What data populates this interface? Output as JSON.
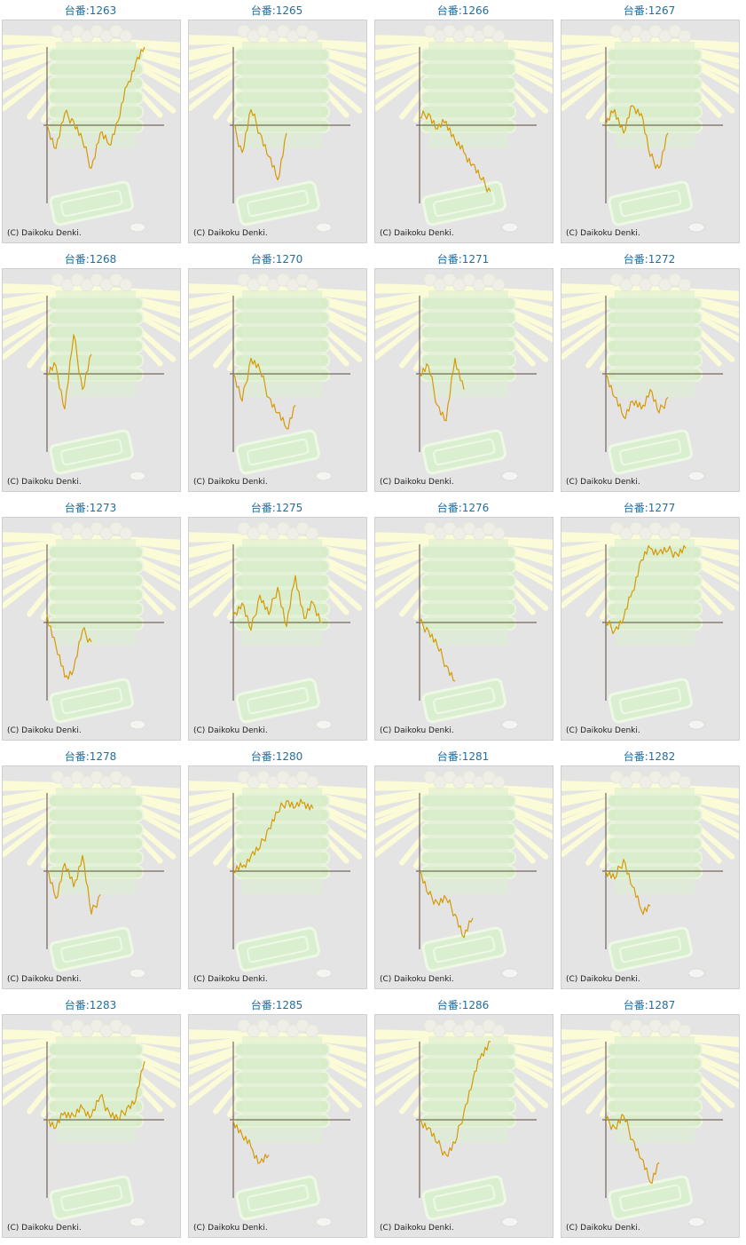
{
  "colors": {
    "title": "#1f6ea0",
    "line": "#d59a08",
    "axis": "#5a4a3a",
    "panel_bg": "#e4e4e4",
    "panel_border": "#cfcfcf",
    "rays": "#fbfbd8",
    "machine": "#d8ecc8"
  },
  "background_icon": "pachinko-slot-machine-illustration",
  "credit_text": "(C) Daikoku Denki.",
  "chart_data": [
    {
      "type": "line",
      "title": "台番:1263",
      "x": [
        0,
        10,
        20,
        30,
        40,
        50,
        60,
        70,
        80,
        90,
        100,
        110
      ],
      "series": [
        {
          "values": [
            0.0,
            -0.3,
            0.15,
            0.05,
            -0.2,
            -0.55,
            -0.1,
            -0.25,
            0.05,
            0.5,
            0.8,
            1.0
          ]
        }
      ]
    },
    {
      "type": "line",
      "title": "台番:1265",
      "x": [
        0,
        10,
        20,
        30,
        40,
        50,
        60
      ],
      "series": [
        {
          "values": [
            0.0,
            -0.35,
            0.2,
            -0.1,
            -0.4,
            -0.7,
            -0.1
          ]
        }
      ]
    },
    {
      "type": "line",
      "title": "台番:1266",
      "x": [
        0,
        10,
        20,
        30,
        40,
        50,
        60,
        70,
        80
      ],
      "series": [
        {
          "values": [
            0.1,
            0.15,
            -0.05,
            0.05,
            -0.2,
            -0.35,
            -0.5,
            -0.7,
            -0.85
          ]
        }
      ]
    },
    {
      "type": "line",
      "title": "台番:1267",
      "x": [
        0,
        10,
        20,
        30,
        40,
        50,
        60,
        70
      ],
      "series": [
        {
          "values": [
            0.0,
            0.2,
            -0.1,
            0.25,
            0.15,
            -0.4,
            -0.55,
            -0.1
          ]
        }
      ]
    },
    {
      "type": "line",
      "title": "台番:1268",
      "x": [
        0,
        10,
        20,
        30,
        40,
        50
      ],
      "series": [
        {
          "values": [
            0.0,
            0.1,
            -0.45,
            0.5,
            -0.2,
            0.25
          ]
        }
      ]
    },
    {
      "type": "line",
      "title": "台番:1270",
      "x": [
        0,
        10,
        20,
        30,
        40,
        50,
        60,
        70
      ],
      "series": [
        {
          "values": [
            0.0,
            -0.35,
            0.2,
            0.05,
            -0.3,
            -0.5,
            -0.7,
            -0.4
          ]
        }
      ]
    },
    {
      "type": "line",
      "title": "台番:1271",
      "x": [
        0,
        10,
        20,
        30,
        40,
        50
      ],
      "series": [
        {
          "values": [
            0.0,
            0.1,
            -0.4,
            -0.6,
            0.2,
            -0.2
          ]
        }
      ]
    },
    {
      "type": "line",
      "title": "台番:1272",
      "x": [
        0,
        10,
        20,
        30,
        40,
        50,
        60,
        70
      ],
      "series": [
        {
          "values": [
            0.0,
            -0.3,
            -0.55,
            -0.35,
            -0.45,
            -0.2,
            -0.5,
            -0.3
          ]
        }
      ]
    },
    {
      "type": "line",
      "title": "台番:1273",
      "x": [
        0,
        10,
        20,
        30,
        40,
        50
      ],
      "series": [
        {
          "values": [
            0.1,
            -0.3,
            -0.7,
            -0.6,
            -0.1,
            -0.25
          ]
        }
      ]
    },
    {
      "type": "line",
      "title": "台番:1275",
      "x": [
        0,
        10,
        20,
        30,
        40,
        50,
        60,
        70,
        80,
        90,
        100
      ],
      "series": [
        {
          "values": [
            0.1,
            0.25,
            -0.1,
            0.35,
            0.1,
            0.45,
            -0.05,
            0.6,
            0.05,
            0.25,
            0.0
          ]
        }
      ]
    },
    {
      "type": "line",
      "title": "台番:1276",
      "x": [
        0,
        10,
        20,
        30,
        40
      ],
      "series": [
        {
          "values": [
            0.0,
            -0.1,
            -0.3,
            -0.55,
            -0.75
          ]
        }
      ]
    },
    {
      "type": "line",
      "title": "台番:1277",
      "x": [
        0,
        10,
        20,
        30,
        40,
        50,
        60,
        70,
        80,
        90
      ],
      "series": [
        {
          "values": [
            0.0,
            -0.1,
            0.05,
            0.4,
            0.8,
            0.95,
            0.9,
            0.92,
            0.88,
            0.95
          ]
        }
      ]
    },
    {
      "type": "line",
      "title": "台番:1278",
      "x": [
        0,
        10,
        20,
        30,
        40,
        50,
        60
      ],
      "series": [
        {
          "values": [
            0.0,
            -0.35,
            0.1,
            -0.2,
            0.2,
            -0.55,
            -0.3
          ]
        }
      ]
    },
    {
      "type": "line",
      "title": "台番:1280",
      "x": [
        0,
        10,
        20,
        30,
        40,
        50,
        60,
        70,
        80,
        90
      ],
      "series": [
        {
          "values": [
            0.0,
            0.05,
            0.2,
            0.3,
            0.55,
            0.75,
            0.9,
            0.82,
            0.88,
            0.8
          ]
        }
      ]
    },
    {
      "type": "line",
      "title": "台番:1281",
      "x": [
        0,
        10,
        20,
        30,
        40,
        50,
        60
      ],
      "series": [
        {
          "values": [
            0.0,
            -0.3,
            -0.4,
            -0.35,
            -0.55,
            -0.85,
            -0.6
          ]
        }
      ]
    },
    {
      "type": "line",
      "title": "台番:1282",
      "x": [
        0,
        10,
        20,
        30,
        40,
        50
      ],
      "series": [
        {
          "values": [
            0.0,
            -0.1,
            0.15,
            -0.2,
            -0.5,
            -0.45
          ]
        }
      ]
    },
    {
      "type": "line",
      "title": "台番:1283",
      "x": [
        0,
        10,
        20,
        30,
        40,
        50,
        60,
        70,
        80,
        90,
        100,
        110
      ],
      "series": [
        {
          "values": [
            0.0,
            -0.1,
            0.1,
            0.05,
            0.15,
            0.05,
            0.3,
            0.1,
            0.0,
            0.15,
            0.25,
            0.75
          ]
        }
      ]
    },
    {
      "type": "line",
      "title": "台番:1285",
      "x": [
        0,
        10,
        20,
        30,
        40
      ],
      "series": [
        {
          "values": [
            0.0,
            -0.2,
            -0.35,
            -0.55,
            -0.45
          ]
        }
      ]
    },
    {
      "type": "line",
      "title": "台番:1286",
      "x": [
        0,
        10,
        20,
        30,
        40,
        50,
        60,
        70,
        80
      ],
      "series": [
        {
          "values": [
            0.0,
            -0.1,
            -0.3,
            -0.45,
            -0.3,
            0.1,
            0.5,
            0.85,
            1.0
          ]
        }
      ]
    },
    {
      "type": "line",
      "title": "台番:1287",
      "x": [
        0,
        10,
        20,
        30,
        40,
        50,
        60
      ],
      "series": [
        {
          "values": [
            0.0,
            -0.1,
            0.05,
            -0.25,
            -0.5,
            -0.8,
            -0.55
          ]
        }
      ]
    }
  ]
}
